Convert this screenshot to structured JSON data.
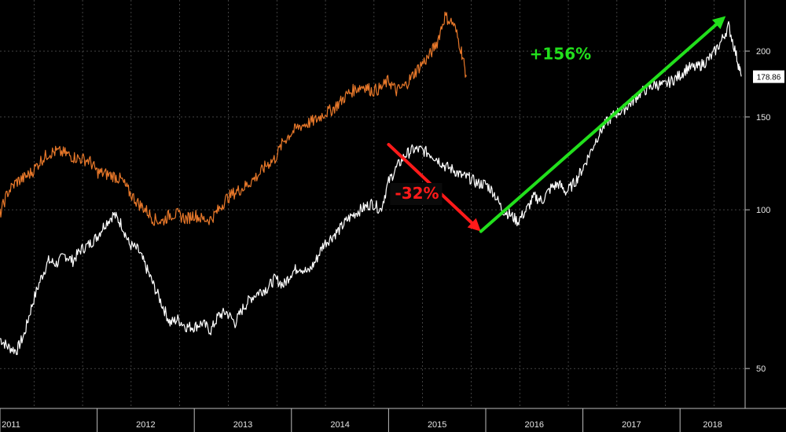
{
  "chart_data": {
    "type": "line",
    "title": "",
    "xlabel": "",
    "ylabel": "",
    "xlim": [
      2011.0,
      2018.67
    ],
    "ylim": [
      42,
      250
    ],
    "y_scale": "log",
    "grid": true,
    "legend": "none",
    "x_ticks": [
      {
        "x": 2011.0,
        "label": "2011"
      },
      {
        "x": 2012.0,
        "label": "2012"
      },
      {
        "x": 2013.0,
        "label": "2013"
      },
      {
        "x": 2014.0,
        "label": "2014"
      },
      {
        "x": 2015.0,
        "label": "2015"
      },
      {
        "x": 2016.0,
        "label": "2016"
      },
      {
        "x": 2017.0,
        "label": "2017"
      },
      {
        "x": 2018.0,
        "label": "2018"
      }
    ],
    "y_ticks": [
      50,
      100,
      150,
      200
    ],
    "last_value_label": "178.86",
    "colors": {
      "white_series": "#ffffff",
      "orange_series": "#e8782a",
      "down_arrow": "#ff1a1a",
      "up_arrow": "#22e01c",
      "grid": "#6a6a6a"
    },
    "series": [
      {
        "color": "#ffffff",
        "x": [
          2011.0,
          2011.08,
          2011.17,
          2011.25,
          2011.33,
          2011.42,
          2011.5,
          2011.58,
          2011.67,
          2011.75,
          2011.83,
          2011.92,
          2012.0,
          2012.08,
          2012.17,
          2012.25,
          2012.33,
          2012.42,
          2012.5,
          2012.58,
          2012.67,
          2012.75,
          2012.83,
          2012.92,
          2013.0,
          2013.08,
          2013.17,
          2013.25,
          2013.33,
          2013.42,
          2013.5,
          2013.58,
          2013.67,
          2013.75,
          2013.83,
          2013.92,
          2014.0,
          2014.08,
          2014.17,
          2014.25,
          2014.33,
          2014.42,
          2014.5,
          2014.58,
          2014.67,
          2014.75,
          2014.83,
          2014.92,
          2015.0,
          2015.08,
          2015.17,
          2015.25,
          2015.33,
          2015.42,
          2015.5,
          2015.58,
          2015.67,
          2015.75,
          2015.83,
          2015.92,
          2016.0,
          2016.08,
          2016.17,
          2016.25,
          2016.33,
          2016.42,
          2016.5,
          2016.58,
          2016.67,
          2016.75,
          2016.83,
          2016.92,
          2017.0,
          2017.08,
          2017.17,
          2017.25,
          2017.33,
          2017.42,
          2017.5,
          2017.58,
          2017.67,
          2017.75,
          2017.83,
          2017.92,
          2018.0,
          2018.08,
          2018.17,
          2018.25,
          2018.33,
          2018.42,
          2018.5,
          2018.58,
          2018.63
        ],
        "values": [
          57,
          55,
          54,
          58,
          66,
          74,
          80,
          79,
          82,
          80,
          84,
          86,
          89,
          94,
          98,
          94,
          86,
          84,
          78,
          72,
          66,
          61,
          62,
          60,
          60,
          61,
          59,
          63,
          64,
          61,
          65,
          68,
          70,
          71,
          74,
          72,
          76,
          78,
          76,
          80,
          86,
          89,
          92,
          96,
          99,
          101,
          103,
          100,
          113,
          120,
          127,
          130,
          130,
          128,
          125,
          121,
          119,
          116,
          115,
          112,
          112,
          108,
          100,
          98,
          95,
          100,
          106,
          104,
          110,
          112,
          108,
          113,
          120,
          129,
          140,
          147,
          152,
          155,
          160,
          166,
          170,
          173,
          172,
          176,
          180,
          186,
          186,
          190,
          196,
          208,
          223,
          196,
          179
        ]
      },
      {
        "color": "#e8782a",
        "x": [
          2011.0,
          2011.08,
          2011.17,
          2011.25,
          2011.33,
          2011.42,
          2011.5,
          2011.58,
          2011.67,
          2011.75,
          2011.83,
          2011.92,
          2012.0,
          2012.08,
          2012.17,
          2012.25,
          2012.33,
          2012.42,
          2012.5,
          2012.58,
          2012.67,
          2012.75,
          2012.83,
          2012.92,
          2013.0,
          2013.08,
          2013.17,
          2013.25,
          2013.33,
          2013.42,
          2013.5,
          2013.58,
          2013.67,
          2013.75,
          2013.83,
          2013.92,
          2014.0,
          2014.08,
          2014.17,
          2014.25,
          2014.33,
          2014.42,
          2014.5,
          2014.58,
          2014.67,
          2014.75,
          2014.83,
          2014.92,
          2015.0,
          2015.08,
          2015.17,
          2015.25,
          2015.33,
          2015.42,
          2015.5,
          2015.58,
          2015.67,
          2015.75,
          2015.8
        ],
        "values": [
          98,
          108,
          113,
          115,
          118,
          124,
          128,
          129,
          128,
          126,
          125,
          124,
          118,
          117,
          116,
          114,
          108,
          103,
          100,
          96,
          95,
          98,
          98,
          96,
          98,
          96,
          96,
          100,
          105,
          108,
          110,
          113,
          117,
          122,
          125,
          135,
          140,
          144,
          146,
          148,
          152,
          155,
          160,
          166,
          170,
          172,
          168,
          170,
          176,
          168,
          172,
          180,
          188,
          196,
          208,
          233,
          225,
          200,
          179
        ]
      }
    ],
    "annotations": [
      {
        "label": "-32%",
        "color": "#ff1a1a",
        "from": [
          2015.0,
          133
        ],
        "to": [
          2015.95,
          91
        ]
      },
      {
        "label": "+156%",
        "color": "#22e01c",
        "from": [
          2015.95,
          91
        ],
        "to": [
          2018.47,
          233
        ]
      }
    ]
  }
}
